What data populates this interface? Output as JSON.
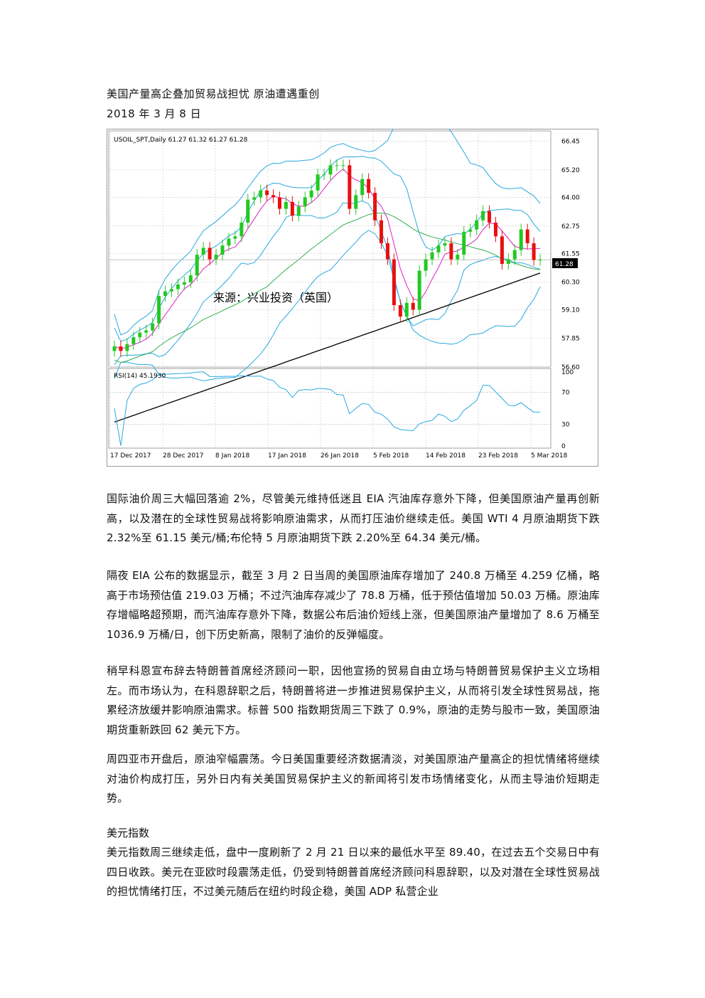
{
  "header": {
    "title": "美国产量高企叠加贸易战担忧  原油遭遇重创",
    "date": "2018 年 3 月 8 日"
  },
  "chart": {
    "symbol_label": "USOIL_SPT,Daily  61.27 61.32 61.27 61.28",
    "watermark": "来源：兴业投资（英国）",
    "current_price": "61.28",
    "price_ticks": [
      "66.45",
      "65.20",
      "64.00",
      "62.75",
      "61.55",
      "60.30",
      "59.10",
      "57.85",
      "56.60"
    ],
    "rsi_label": "RSI(14) 45.1930",
    "rsi_ticks": [
      "100",
      "70",
      "30",
      "0"
    ],
    "date_ticks": [
      "17 Dec 2017",
      "28 Dec 2017",
      "8 Jan 2018",
      "17 Jan 2018",
      "26 Jan 2018",
      "5 Feb 2018",
      "14 Feb 2018",
      "23 Feb 2018",
      "5 Mar 2018"
    ],
    "colors": {
      "up": "#22c922",
      "down": "#e81010",
      "bands": "#29a8e0",
      "ma_short": "#e020c0",
      "ma_mid": "#30b050",
      "ma_long": "#000000"
    }
  },
  "chart_data": {
    "type": "line",
    "title": "USOIL_SPT,Daily",
    "ylim": [
      56.6,
      66.9
    ],
    "last_close": 61.28,
    "candles_close": [
      57.5,
      57.3,
      57.6,
      57.9,
      58.1,
      58.2,
      58.5,
      59.7,
      59.9,
      60.0,
      60.2,
      60.3,
      60.6,
      61.5,
      61.8,
      61.3,
      61.5,
      61.9,
      62.2,
      62.3,
      62.9,
      63.9,
      64.0,
      64.3,
      64.1,
      64.0,
      63.5,
      63.8,
      63.2,
      63.6,
      64.0,
      64.3,
      65.0,
      65.0,
      65.4,
      65.4,
      65.4,
      63.5,
      64.1,
      64.8,
      64.2,
      63.0,
      62.0,
      61.3,
      59.3,
      58.8,
      59.4,
      59.1,
      60.8,
      61.3,
      61.6,
      61.9,
      62.0,
      61.3,
      61.5,
      62.5,
      62.6,
      63.0,
      63.4,
      62.9,
      62.3,
      61.1,
      61.3,
      61.7,
      62.6,
      62.0,
      61.27,
      61.28
    ],
    "rsi": {
      "name": "RSI(14)",
      "last": 45.193,
      "ylim": [
        0,
        100
      ],
      "levels": [
        70,
        30
      ]
    }
  },
  "paragraphs": [
    "国际油价周三大幅回落逾 2%，尽管美元维持低迷且 EIA 汽油库存意外下降，但美国原油产量再创新高，以及潜在的全球性贸易战将影响原油需求，从而打压油价继续走低。美国 WTI 4 月原油期货下跌 2.32%至 61.15 美元/桶;布伦特 5 月原油期货下跌 2.20%至 64.34 美元/桶。",
    "隔夜 EIA 公布的数据显示，截至 3 月 2 日当周的美国原油库存增加了 240.8 万桶至 4.259 亿桶，略高于市场预估值 219.03 万桶；不过汽油库存减少了 78.8 万桶，低于预估值增加 50.03 万桶。原油库存增幅略超预期，而汽油库存意外下降，数据公布后油价短线上涨，但美国原油产量增加了 8.6 万桶至 1036.9 万桶/日，创下历史新高，限制了油价的反弹幅度。",
    "稍早科恩宣布辞去特朗普首席经济顾问一职，因他宣扬的贸易自由立场与特朗普贸易保护主义立场相左。而市场认为，在科恩辞职之后，特朗普将进一步推进贸易保护主义，从而将引发全球性贸易战，拖累经济放缓并影响原油需求。标普 500 指数期货周三下跌了 0.9%，原油的走势与股市一致，美国原油期货重新跌回 62 美元下方。",
    "周四亚市开盘后，原油窄幅震荡。今日美国重要经济数据清淡，对美国原油产量高企的担忧情绪将继续对油价构成打压，另外日内有关美国贸易保护主义的新闻将引发市场情绪变化，从而主导油价短期走势。"
  ],
  "section": {
    "heading": "美元指数",
    "text": "美元指数周三继续走低，盘中一度刷新了 2 月 21 日以来的最低水平至 89.40，在过去五个交易日中有四日收跌。美元在亚欧时段震荡走低，仍受到特朗普首席经济顾问科恩辞职，以及对潜在全球性贸易战的担忧情绪打压，不过美元随后在纽约时段企稳，美国 ADP 私营企业"
  }
}
